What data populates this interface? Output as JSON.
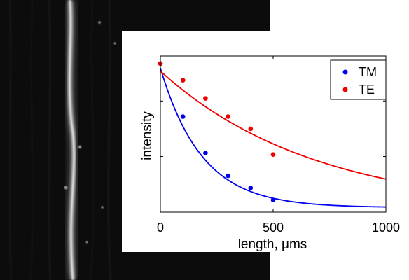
{
  "background": {
    "kind": "grayscale microscope image",
    "colors": {
      "dark": "#0c0c0c",
      "fiber": "#d9d9d9"
    }
  },
  "chart_data": {
    "type": "scatter",
    "title": "",
    "xlabel": "length, μms",
    "ylabel": "intensity",
    "xlim": [
      0,
      1000
    ],
    "ylim": [
      0,
      1.03
    ],
    "xticks": [
      0,
      500,
      1000
    ],
    "xtick_labels": [
      "0",
      "500",
      "1000"
    ],
    "yticks": [
      0.367,
      0.733
    ],
    "ytick_labels": [
      "",
      ""
    ],
    "grid": false,
    "legend": {
      "position": "top-right",
      "entries": [
        "TM",
        "TE"
      ]
    },
    "series": [
      {
        "name": "TM",
        "color": "#0000ee",
        "points": {
          "x": [
            0,
            100,
            200,
            300,
            400,
            500
          ],
          "y": [
            0.98,
            0.63,
            0.39,
            0.24,
            0.16,
            0.08
          ]
        },
        "fit": {
          "model": "exponential",
          "amplitude": 0.92,
          "rate": 0.0054,
          "offset": 0.03
        }
      },
      {
        "name": "TE",
        "color": "#ee0000",
        "points": {
          "x": [
            0,
            100,
            200,
            300,
            400,
            500
          ],
          "y": [
            0.98,
            0.87,
            0.75,
            0.63,
            0.55,
            0.38
          ]
        },
        "fit": {
          "model": "exponential",
          "amplitude": 0.93,
          "rate": 0.00145,
          "offset": 0.0
        }
      }
    ]
  }
}
